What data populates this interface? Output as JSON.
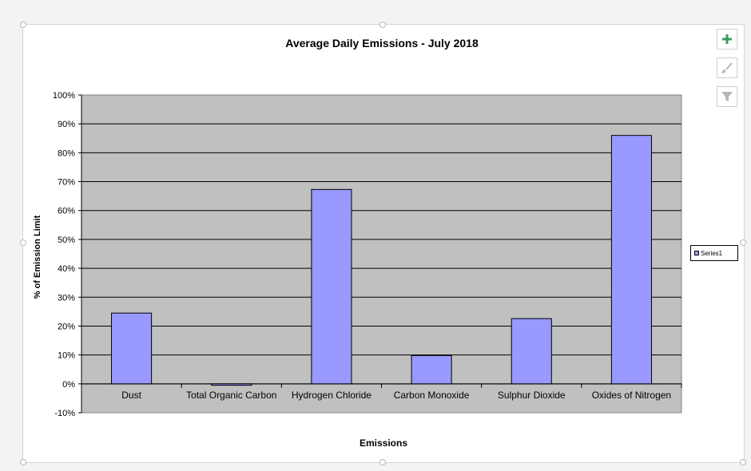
{
  "chart_data": {
    "type": "bar",
    "title": "Average Daily Emissions - July 2018",
    "xlabel": "Emissions",
    "ylabel": "% of Emission Limit",
    "categories": [
      "Dust",
      "Total Organic Carbon",
      "Hydrogen Chloride",
      "Carbon Monoxide",
      "Sulphur Dioxide",
      "Oxides of Nitrogen"
    ],
    "series": [
      {
        "name": "Series1",
        "values": [
          24.5,
          -0.5,
          67.3,
          9.8,
          22.6,
          86.0
        ]
      }
    ],
    "ylim": [
      -10,
      100
    ],
    "yticks": [
      100,
      90,
      80,
      70,
      60,
      50,
      40,
      30,
      20,
      10,
      0,
      -10
    ],
    "ytick_labels": [
      "100%",
      "90%",
      "80%",
      "70%",
      "60%",
      "50%",
      "40%",
      "30%",
      "20%",
      "10%",
      "0%",
      "-10%"
    ],
    "grid": true,
    "legend_position": "right",
    "colors": {
      "bar": "#9999ff",
      "plot_background": "#c0c0c0",
      "bar_border": "#000000"
    }
  },
  "toolbar": {
    "add_icon": "plus-icon",
    "style_icon": "paintbrush-icon",
    "filter_icon": "filter-icon"
  }
}
